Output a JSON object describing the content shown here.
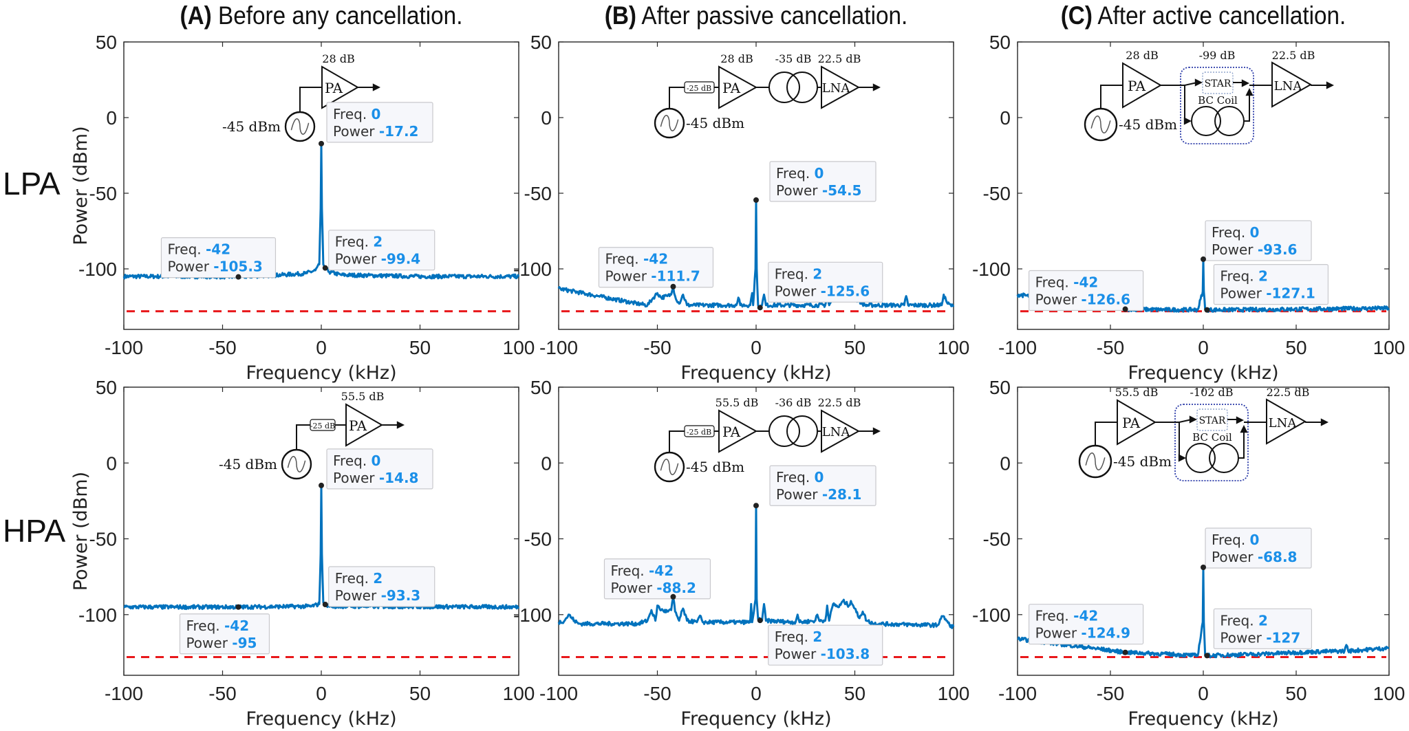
{
  "figure": {
    "row_labels": [
      "LPA",
      "HPA"
    ],
    "column_titles": [
      {
        "label": "(A)",
        "text": "Before any cancellation."
      },
      {
        "label": "(B)",
        "text": "After passive cancellation."
      },
      {
        "label": "(C)",
        "text": "After active cancellation."
      }
    ],
    "colors": {
      "trace": "#0072bd",
      "reference_line": "#e8181b",
      "datatip_value": "#1a8fe8",
      "inset_box": "#2a3aa8"
    }
  },
  "chart_data": [
    {
      "type": "line",
      "row": "LPA",
      "column": "(A)",
      "xlabel": "Frequency (kHz)",
      "ylabel": "Power (dBm)",
      "xlim": [
        -100,
        100
      ],
      "ylim": [
        -140,
        50
      ],
      "xticks": [
        -100,
        -50,
        0,
        50,
        100
      ],
      "yticks": [
        50,
        0,
        -50,
        -100
      ],
      "reference_line_dbm": -128,
      "series": [
        {
          "points": [
            [
              -100,
              -105
            ],
            [
              -60,
              -105
            ],
            [
              -42,
              -105.3
            ],
            [
              -20,
              -104
            ],
            [
              -8,
              -103
            ],
            [
              -3,
              -101
            ],
            [
              -1,
              -97
            ],
            [
              -0.3,
              -60
            ],
            [
              0,
              -17.2
            ],
            [
              0.3,
              -60
            ],
            [
              1,
              -97
            ],
            [
              2,
              -99.4
            ],
            [
              4,
              -102
            ],
            [
              10,
              -104
            ],
            [
              50,
              -105
            ],
            [
              100,
              -105
            ]
          ]
        }
      ],
      "datatips": [
        {
          "freq_label": "Freq.",
          "freq": "0",
          "power_label": "Power",
          "power": "-17.2"
        },
        {
          "freq_label": "Freq.",
          "freq": "2",
          "power_label": "Power",
          "power": "-99.4"
        },
        {
          "freq_label": "Freq.",
          "freq": "-42",
          "power_label": "Power",
          "power": "-105.3"
        }
      ],
      "inset": {
        "type": "pa",
        "source": "-45 dBm",
        "pa": "PA",
        "pa_gain": "28 dB"
      }
    },
    {
      "type": "line",
      "row": "LPA",
      "column": "(B)",
      "xlabel": "Frequency (kHz)",
      "ylabel": "",
      "xlim": [
        -100,
        100
      ],
      "ylim": [
        -140,
        50
      ],
      "xticks": [
        -100,
        -50,
        0,
        50,
        100
      ],
      "yticks": [
        50,
        0,
        -50,
        -100
      ],
      "reference_line_dbm": -128,
      "series": [
        {
          "points": [
            [
              -100,
              -113
            ],
            [
              -80,
              -118
            ],
            [
              -60,
              -123
            ],
            [
              -55,
              -124
            ],
            [
              -52,
              -119
            ],
            [
              -50,
              -116
            ],
            [
              -48,
              -119
            ],
            [
              -45,
              -118
            ],
            [
              -43,
              -117
            ],
            [
              -42,
              -111.7
            ],
            [
              -41,
              -118
            ],
            [
              -39,
              -123
            ],
            [
              -37,
              -117
            ],
            [
              -35,
              -124
            ],
            [
              -10,
              -124
            ],
            [
              -9,
              -119
            ],
            [
              -8,
              -124
            ],
            [
              -3,
              -124
            ],
            [
              -2,
              -116
            ],
            [
              -1.5,
              -124
            ],
            [
              -0.3,
              -100
            ],
            [
              0,
              -54.5
            ],
            [
              0.3,
              -100
            ],
            [
              1,
              -124
            ],
            [
              2,
              -125.6
            ],
            [
              3,
              -124
            ],
            [
              4,
              -117
            ],
            [
              5,
              -124
            ],
            [
              35,
              -124
            ],
            [
              36,
              -118
            ],
            [
              37,
              -124
            ],
            [
              40,
              -117
            ],
            [
              43,
              -114
            ],
            [
              46,
              -117
            ],
            [
              48,
              -115
            ],
            [
              50,
              -120
            ],
            [
              52,
              -121
            ],
            [
              55,
              -124
            ],
            [
              75,
              -124
            ],
            [
              76,
              -118
            ],
            [
              77,
              -124
            ],
            [
              94,
              -124
            ],
            [
              95,
              -117
            ],
            [
              97,
              -123
            ],
            [
              100,
              -125
            ]
          ]
        }
      ],
      "datatips": [
        {
          "freq_label": "Freq.",
          "freq": "0",
          "power_label": "Power",
          "power": "-54.5"
        },
        {
          "freq_label": "Freq.",
          "freq": "-42",
          "power_label": "Power",
          "power": "-111.7"
        },
        {
          "freq_label": "Freq.",
          "freq": "2",
          "power_label": "Power",
          "power": "-125.6"
        }
      ],
      "inset": {
        "type": "passive",
        "source": "-45 dBm",
        "attenuator": "-25 dB",
        "pa": "PA",
        "pa_gain": "28 dB",
        "coil_gain": "-35 dB",
        "lna": "LNA",
        "lna_gain": "22.5 dB"
      }
    },
    {
      "type": "line",
      "row": "LPA",
      "column": "(C)",
      "xlabel": "Frequency (kHz)",
      "ylabel": "",
      "xlim": [
        -100,
        100
      ],
      "ylim": [
        -140,
        50
      ],
      "xticks": [
        -100,
        -50,
        0,
        50,
        100
      ],
      "yticks": [
        50,
        0,
        -50,
        -100
      ],
      "reference_line_dbm": -128,
      "series": [
        {
          "points": [
            [
              -100,
              -117
            ],
            [
              -80,
              -120
            ],
            [
              -60,
              -124
            ],
            [
              -42,
              -126.6
            ],
            [
              -20,
              -127
            ],
            [
              -3,
              -127
            ],
            [
              -0.3,
              -115
            ],
            [
              0,
              -93.6
            ],
            [
              0.3,
              -115
            ],
            [
              1,
              -127
            ],
            [
              2,
              -127.1
            ],
            [
              20,
              -127
            ],
            [
              60,
              -126.5
            ],
            [
              100,
              -126
            ]
          ]
        }
      ],
      "datatips": [
        {
          "freq_label": "Freq.",
          "freq": "0",
          "power_label": "Power",
          "power": "-93.6"
        },
        {
          "freq_label": "Freq.",
          "freq": "-42",
          "power_label": "Power",
          "power": "-126.6"
        },
        {
          "freq_label": "Freq.",
          "freq": "2",
          "power_label": "Power",
          "power": "-127.1"
        }
      ],
      "inset": {
        "type": "active",
        "source": "-45 dBm",
        "pa": "PA",
        "pa_gain": "28 dB",
        "canceller_gain": "-99 dB",
        "star": "STAR",
        "coil": "BC Coil",
        "lna": "LNA",
        "lna_gain": "22.5 dB"
      }
    },
    {
      "type": "line",
      "row": "HPA",
      "column": "(A)",
      "xlabel": "Frequency (kHz)",
      "ylabel": "Power (dBm)",
      "xlim": [
        -100,
        100
      ],
      "ylim": [
        -140,
        50
      ],
      "xticks": [
        -100,
        -50,
        0,
        50,
        100
      ],
      "yticks": [
        50,
        0,
        -50,
        -100
      ],
      "reference_line_dbm": -128,
      "series": [
        {
          "points": [
            [
              -100,
              -95
            ],
            [
              -42,
              -95
            ],
            [
              -5,
              -94.5
            ],
            [
              -1,
              -93
            ],
            [
              -0.3,
              -60
            ],
            [
              0,
              -14.8
            ],
            [
              0.3,
              -60
            ],
            [
              1,
              -92
            ],
            [
              2,
              -93.3
            ],
            [
              5,
              -94.5
            ],
            [
              100,
              -95
            ]
          ]
        }
      ],
      "datatips": [
        {
          "freq_label": "Freq.",
          "freq": "0",
          "power_label": "Power",
          "power": "-14.8"
        },
        {
          "freq_label": "Freq.",
          "freq": "2",
          "power_label": "Power",
          "power": "-93.3"
        },
        {
          "freq_label": "Freq.",
          "freq": "-42",
          "power_label": "Power",
          "power": "-95"
        }
      ],
      "inset": {
        "type": "pa",
        "source": "-45 dBm",
        "attenuator": "-25 dB",
        "pa": "PA",
        "pa_gain": "55.5 dB"
      }
    },
    {
      "type": "line",
      "row": "HPA",
      "column": "(B)",
      "xlabel": "Frequency (kHz)",
      "ylabel": "",
      "xlim": [
        -100,
        100
      ],
      "ylim": [
        -140,
        50
      ],
      "xticks": [
        -100,
        -50,
        0,
        50,
        100
      ],
      "yticks": [
        50,
        0,
        -50,
        -100
      ],
      "reference_line_dbm": -128,
      "series": [
        {
          "points": [
            [
              -100,
              -105
            ],
            [
              -97,
              -104
            ],
            [
              -95,
              -100
            ],
            [
              -92,
              -104
            ],
            [
              -90,
              -106
            ],
            [
              -60,
              -106
            ],
            [
              -55,
              -104
            ],
            [
              -53,
              -97
            ],
            [
              -51,
              -104
            ],
            [
              -50,
              -94
            ],
            [
              -48,
              -97
            ],
            [
              -45,
              -98
            ],
            [
              -43,
              -97
            ],
            [
              -42,
              -88.2
            ],
            [
              -41,
              -98
            ],
            [
              -39,
              -104
            ],
            [
              -37,
              -96
            ],
            [
              -35,
              -104
            ],
            [
              -30,
              -105
            ],
            [
              -28,
              -101
            ],
            [
              -27,
              -105
            ],
            [
              -20,
              -105
            ],
            [
              -3,
              -105
            ],
            [
              -2.5,
              -93
            ],
            [
              -2,
              -105
            ],
            [
              -0.3,
              -90
            ],
            [
              0,
              -28.1
            ],
            [
              0.3,
              -90
            ],
            [
              1,
              -103
            ],
            [
              2,
              -103.8
            ],
            [
              3,
              -104
            ],
            [
              4,
              -93
            ],
            [
              5,
              -104
            ],
            [
              20,
              -105
            ],
            [
              21,
              -100
            ],
            [
              22,
              -105
            ],
            [
              30,
              -104
            ],
            [
              31,
              -100
            ],
            [
              32,
              -104
            ],
            [
              35,
              -104
            ],
            [
              36,
              -94
            ],
            [
              37,
              -104
            ],
            [
              39,
              -93
            ],
            [
              42,
              -95
            ],
            [
              44,
              -91
            ],
            [
              47,
              -94
            ],
            [
              48,
              -91
            ],
            [
              50,
              -96
            ],
            [
              52,
              -102
            ],
            [
              54,
              -98
            ],
            [
              56,
              -104
            ],
            [
              60,
              -106
            ],
            [
              92,
              -107
            ],
            [
              94,
              -101
            ],
            [
              96,
              -103
            ],
            [
              98,
              -107
            ],
            [
              100,
              -108
            ]
          ]
        }
      ],
      "datatips": [
        {
          "freq_label": "Freq.",
          "freq": "0",
          "power_label": "Power",
          "power": "-28.1"
        },
        {
          "freq_label": "Freq.",
          "freq": "-42",
          "power_label": "Power",
          "power": "-88.2"
        },
        {
          "freq_label": "Freq.",
          "freq": "2",
          "power_label": "Power",
          "power": "-103.8"
        }
      ],
      "inset": {
        "type": "passive",
        "source": "-45 dBm",
        "attenuator": "-25 dB",
        "pa": "PA",
        "pa_gain": "55.5 dB",
        "coil_gain": "-36 dB",
        "lna": "LNA",
        "lna_gain": "22.5 dB"
      }
    },
    {
      "type": "line",
      "row": "HPA",
      "column": "(C)",
      "xlabel": "Frequency (kHz)",
      "ylabel": "",
      "xlim": [
        -100,
        100
      ],
      "ylim": [
        -140,
        50
      ],
      "xticks": [
        -100,
        -50,
        0,
        50,
        100
      ],
      "yticks": [
        50,
        0,
        -50,
        -100
      ],
      "reference_line_dbm": -128,
      "series": [
        {
          "points": [
            [
              -100,
              -116
            ],
            [
              -80,
              -119
            ],
            [
              -60,
              -122
            ],
            [
              -42,
              -124.9
            ],
            [
              -20,
              -126
            ],
            [
              -3,
              -127
            ],
            [
              -0.3,
              -105
            ],
            [
              0,
              -68.8
            ],
            [
              0.3,
              -105
            ],
            [
              1,
              -127
            ],
            [
              2,
              -127
            ],
            [
              30,
              -126
            ],
            [
              60,
              -124.5
            ],
            [
              76,
              -124
            ],
            [
              77,
              -120
            ],
            [
              78,
              -124
            ],
            [
              100,
              -122
            ]
          ]
        }
      ],
      "datatips": [
        {
          "freq_label": "Freq.",
          "freq": "0",
          "power_label": "Power",
          "power": "-68.8"
        },
        {
          "freq_label": "Freq.",
          "freq": "-42",
          "power_label": "Power",
          "power": "-124.9"
        },
        {
          "freq_label": "Freq.",
          "freq": "2",
          "power_label": "Power",
          "power": "-127"
        }
      ],
      "inset": {
        "type": "active",
        "source": "-45 dBm",
        "pa": "PA",
        "pa_gain": "55.5 dB",
        "canceller_gain": "-102 dB",
        "star": "STAR",
        "coil": "BC Coil",
        "lna": "LNA",
        "lna_gain": "22.5 dB"
      }
    }
  ]
}
